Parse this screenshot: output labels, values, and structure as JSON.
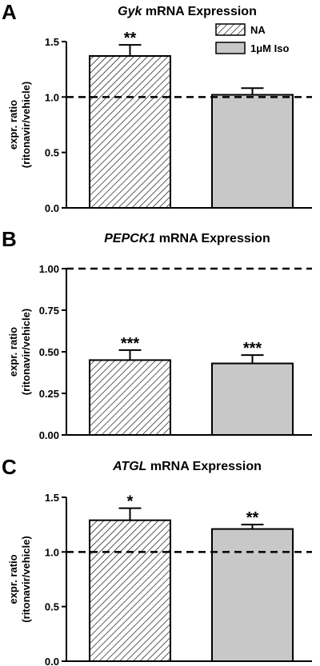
{
  "chart_data": [
    {
      "panel_letter": "A",
      "type": "bar",
      "title_gene": "Gyk",
      "title_rest": " mRNA Expression",
      "ylabel_line1": "expr. ratio",
      "ylabel_line2": "(ritonavir/vehicle)",
      "ylim": [
        0,
        1.5
      ],
      "yticks": [
        0.0,
        0.5,
        1.0,
        1.5
      ],
      "ytick_labels": [
        "0.0",
        "0.5",
        "1.0",
        "1.5"
      ],
      "reference_line": 1.0,
      "show_legend": true,
      "legend_placement": "top-right",
      "series": [
        {
          "name": "NA",
          "value": 1.37,
          "error": 0.1,
          "significance": "**",
          "fill": "hatched"
        },
        {
          "name": "1μM Iso",
          "value": 1.02,
          "error": 0.06,
          "significance": "",
          "fill": "#c8c8c8"
        }
      ]
    },
    {
      "panel_letter": "B",
      "type": "bar",
      "title_gene": "PEPCK1",
      "title_rest": " mRNA Expression",
      "ylabel_line1": "expr. ratio",
      "ylabel_line2": "(ritonavir/vehicle)",
      "ylim": [
        0,
        1.0
      ],
      "yticks": [
        0.0,
        0.25,
        0.5,
        0.75,
        1.0
      ],
      "ytick_labels": [
        "0.00",
        "0.25",
        "0.50",
        "0.75",
        "1.00"
      ],
      "reference_line": 1.0,
      "show_legend": false,
      "series": [
        {
          "name": "NA",
          "value": 0.45,
          "error": 0.06,
          "significance": "***",
          "fill": "hatched"
        },
        {
          "name": "1μM Iso",
          "value": 0.43,
          "error": 0.05,
          "significance": "***",
          "fill": "#c8c8c8"
        }
      ]
    },
    {
      "panel_letter": "C",
      "type": "bar",
      "title_gene": "ATGL",
      "title_rest": " mRNA Expression",
      "ylabel_line1": "expr. ratio",
      "ylabel_line2": "(ritonavir/vehicle)",
      "ylim": [
        0,
        1.5
      ],
      "yticks": [
        0.0,
        0.5,
        1.0,
        1.5
      ],
      "ytick_labels": [
        "0.0",
        "0.5",
        "1.0",
        "1.5"
      ],
      "reference_line": 1.0,
      "show_legend": false,
      "series": [
        {
          "name": "NA",
          "value": 1.29,
          "error": 0.11,
          "significance": "*",
          "fill": "hatched"
        },
        {
          "name": "1μM Iso",
          "value": 1.21,
          "error": 0.04,
          "significance": "**",
          "fill": "#c8c8c8"
        }
      ]
    }
  ]
}
